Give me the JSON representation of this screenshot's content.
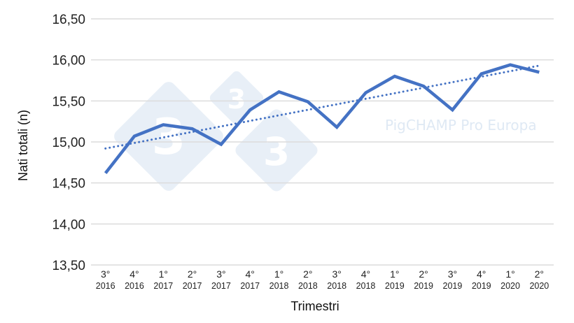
{
  "chart_data": {
    "type": "line",
    "title": "",
    "xlabel": "Trimestri",
    "ylabel": "Nati totali (n)",
    "ylim": [
      13.5,
      16.5
    ],
    "yticks": [
      "13,50",
      "14,00",
      "14,50",
      "15,00",
      "15,50",
      "16,00",
      "16,50"
    ],
    "ytick_values": [
      13.5,
      14.0,
      14.5,
      15.0,
      15.5,
      16.0,
      16.5
    ],
    "grid": true,
    "legend": "none",
    "categories": [
      {
        "quarter": "3°",
        "year": "2016"
      },
      {
        "quarter": "4°",
        "year": "2016"
      },
      {
        "quarter": "1°",
        "year": "2017"
      },
      {
        "quarter": "2°",
        "year": "2017"
      },
      {
        "quarter": "3°",
        "year": "2017"
      },
      {
        "quarter": "4°",
        "year": "2017"
      },
      {
        "quarter": "1°",
        "year": "2018"
      },
      {
        "quarter": "2°",
        "year": "2018"
      },
      {
        "quarter": "3°",
        "year": "2018"
      },
      {
        "quarter": "4°",
        "year": "2018"
      },
      {
        "quarter": "1°",
        "year": "2019"
      },
      {
        "quarter": "2°",
        "year": "2019"
      },
      {
        "quarter": "3°",
        "year": "2019"
      },
      {
        "quarter": "4°",
        "year": "2019"
      },
      {
        "quarter": "1°",
        "year": "2020"
      },
      {
        "quarter": "2°",
        "year": "2020"
      }
    ],
    "series": [
      {
        "name": "Nati totali",
        "style": "solid",
        "color": "#4472C4",
        "values": [
          14.62,
          15.07,
          15.21,
          15.16,
          14.97,
          15.39,
          15.61,
          15.49,
          15.18,
          15.6,
          15.8,
          15.68,
          15.39,
          15.83,
          15.94,
          15.85
        ]
      },
      {
        "name": "Tendenza lineare",
        "style": "dotted",
        "color": "#4472C4",
        "values_start_end": [
          14.92,
          15.93
        ]
      }
    ],
    "annotations": {
      "watermark_text": "PigCHAMP Pro Europa",
      "watermark_logo_glyph": "3"
    }
  }
}
